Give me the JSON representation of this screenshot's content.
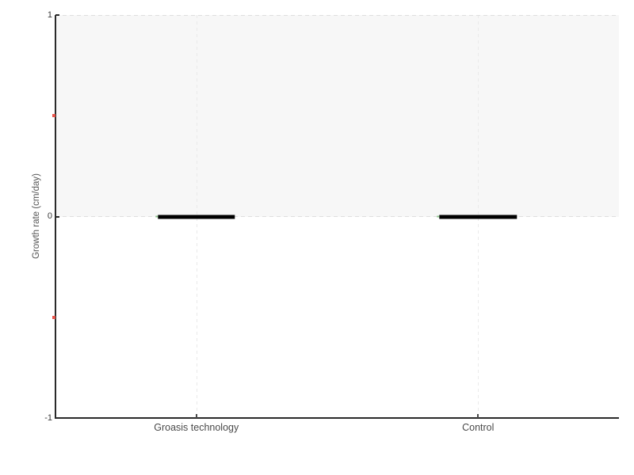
{
  "chart_data": {
    "type": "bar",
    "mark": "thick horizontal median line at value",
    "title": "",
    "xlabel": "",
    "ylabel": "Growth rate (cm/day)",
    "categories": [
      "Groasis technology",
      "Control"
    ],
    "series": [
      {
        "name": "Growth rate",
        "values": [
          0,
          0
        ]
      }
    ],
    "ylim": [
      -1,
      1
    ],
    "yticks_major": [
      1,
      0,
      -1
    ],
    "ytick_labels": [
      "1",
      "0",
      "-1"
    ],
    "yticks_minor": [
      0.5,
      -0.5
    ],
    "shaded_band": {
      "from": 0,
      "to": 1,
      "color": "#f7f7f7"
    },
    "grid": {
      "horizontal_dashed_at": [
        1,
        0
      ],
      "vertical_dashed_at_category_centers": true,
      "style": "dashed"
    },
    "legend": "none",
    "bar_width_fraction_of_plot": 0.137,
    "bar_thickness_px": 5,
    "colors": {
      "bar": "#000000",
      "bar_end_marker_green": "#8bc48b",
      "minor_tick_red": "#e8544b",
      "axis": "#2a2a2a",
      "grid_horizontal": "#dedede",
      "grid_vertical": "#eaeaea",
      "tick_label": "#3a3a3a",
      "category_label": "#4a4a4a",
      "axis_title": "#555555",
      "band": "#f7f7f7",
      "background": "#ffffff"
    }
  }
}
